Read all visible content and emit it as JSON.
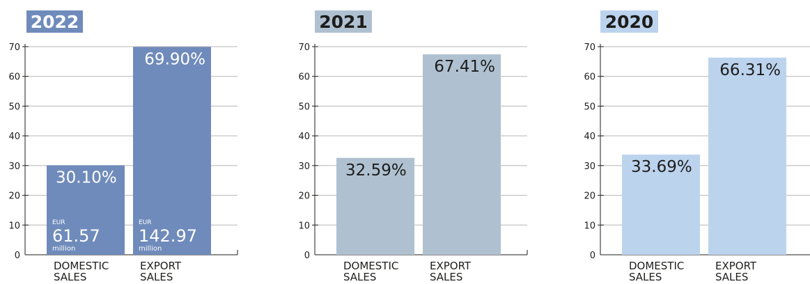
{
  "chart_data": [
    {
      "type": "bar",
      "title": "2022",
      "colors": {
        "bar": "#6f8bbb",
        "title_bg": "#6f8bbb",
        "title_text": "#ffffff",
        "bar_label": "#ffffff"
      },
      "categories": [
        "DOMESTIC SALES",
        "EXPORT SALES"
      ],
      "category_lines": [
        [
          "DOMESTIC",
          "SALES"
        ],
        [
          "EXPORT",
          "SALES"
        ]
      ],
      "values": [
        30.1,
        69.9
      ],
      "value_labels": [
        "30.10%",
        "69.90%"
      ],
      "amounts": [
        {
          "prefix": "EUR",
          "value": "61.57",
          "suffix": "million"
        },
        {
          "prefix": "EUR",
          "value": "142.97",
          "suffix": "million"
        }
      ],
      "ylim": [
        0,
        70
      ],
      "yticks": [
        0,
        10,
        20,
        30,
        40,
        50,
        60,
        70
      ],
      "grid": true
    },
    {
      "type": "bar",
      "title": "2021",
      "colors": {
        "bar": "#afc1d1",
        "title_bg": "#afc1d1",
        "title_text": "#1d1d1b",
        "bar_label": "#1d1d1b"
      },
      "categories": [
        "DOMESTIC SALES",
        "EXPORT SALES"
      ],
      "category_lines": [
        [
          "DOMESTIC",
          "SALES"
        ],
        [
          "EXPORT",
          "SALES"
        ]
      ],
      "values": [
        32.59,
        67.41
      ],
      "value_labels": [
        "32.59%",
        "67.41%"
      ],
      "ylim": [
        0,
        70
      ],
      "yticks": [
        0,
        10,
        20,
        30,
        40,
        50,
        60,
        70
      ],
      "grid": true
    },
    {
      "type": "bar",
      "title": "2020",
      "colors": {
        "bar": "#bcd3ee",
        "title_bg": "#bcd3ee",
        "title_text": "#1d1d1b",
        "bar_label": "#1d1d1b"
      },
      "categories": [
        "DOMESTIC SALES",
        "EXPORT SALES"
      ],
      "category_lines": [
        [
          "DOMESTIC",
          "SALES"
        ],
        [
          "EXPORT",
          "SALES"
        ]
      ],
      "values": [
        33.69,
        66.31
      ],
      "value_labels": [
        "33.69%",
        "66.31%"
      ],
      "ylim": [
        0,
        70
      ],
      "yticks": [
        0,
        10,
        20,
        30,
        40,
        50,
        60,
        70
      ],
      "grid": true
    }
  ]
}
